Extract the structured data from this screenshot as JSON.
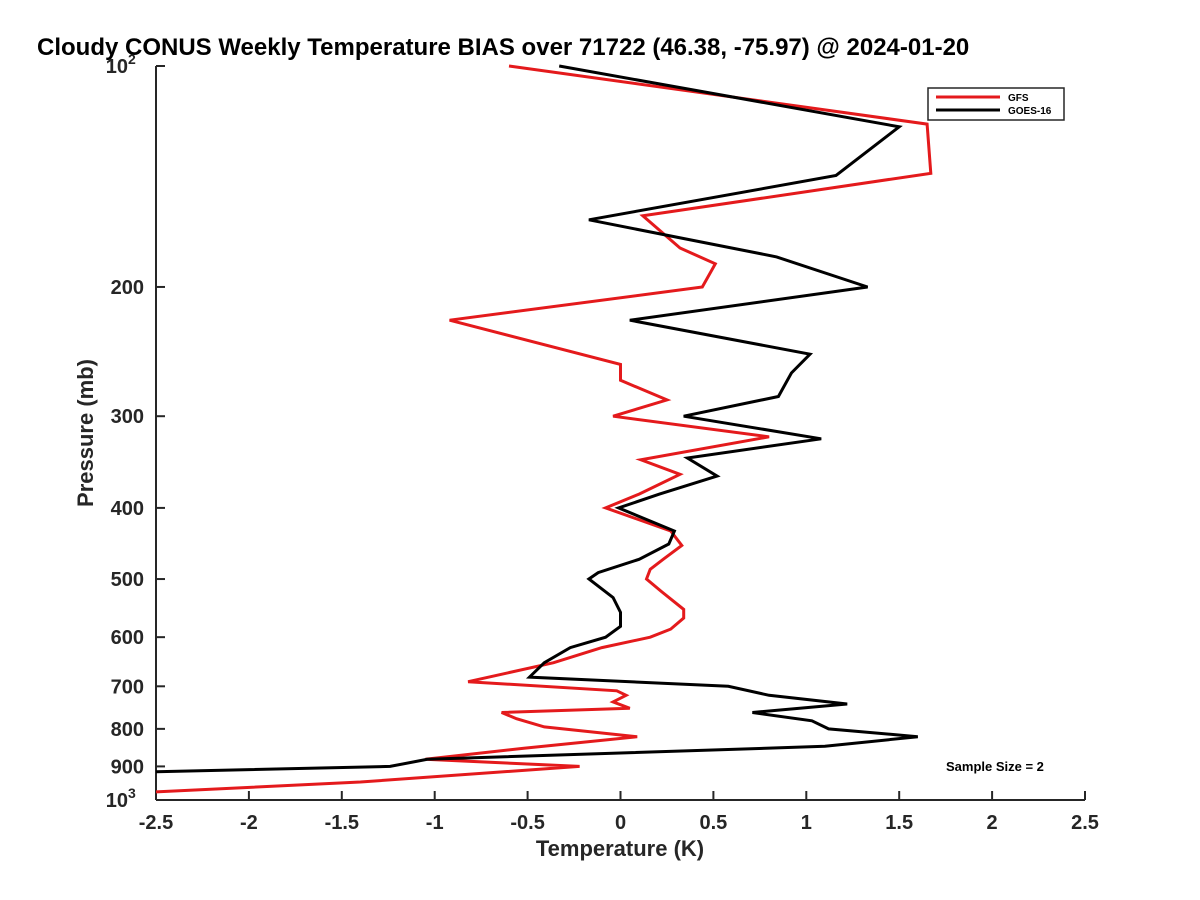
{
  "chart_data": {
    "type": "line",
    "title": "Cloudy CONUS Weekly Temperature BIAS over 71722 (46.38, -75.97) @ 2024-01-20",
    "xlabel": "Temperature (K)",
    "ylabel": "Pressure (mb)",
    "xlim": [
      -2.5,
      2.5
    ],
    "ylim": [
      100,
      1000
    ],
    "yscale": "log",
    "yreverse": true,
    "grid": false,
    "legend_position": "top-right",
    "annotation": "Sample Size = 2",
    "x_ticks": [
      {
        "value": -2.5,
        "label": "-2.5"
      },
      {
        "value": -2,
        "label": "-2"
      },
      {
        "value": -1.5,
        "label": "-1.5"
      },
      {
        "value": -1,
        "label": "-1"
      },
      {
        "value": -0.5,
        "label": "-0.5"
      },
      {
        "value": 0,
        "label": "0"
      },
      {
        "value": 0.5,
        "label": "0.5"
      },
      {
        "value": 1,
        "label": "1"
      },
      {
        "value": 1.5,
        "label": "1.5"
      },
      {
        "value": 2,
        "label": "2"
      },
      {
        "value": 2.5,
        "label": "2.5"
      }
    ],
    "y_ticks": [
      {
        "value": 100,
        "label": "10",
        "sup": "2"
      },
      {
        "value": 200,
        "label": "200"
      },
      {
        "value": 300,
        "label": "300"
      },
      {
        "value": 400,
        "label": "400"
      },
      {
        "value": 500,
        "label": "500"
      },
      {
        "value": 600,
        "label": "600"
      },
      {
        "value": 700,
        "label": "700"
      },
      {
        "value": 800,
        "label": "800"
      },
      {
        "value": 900,
        "label": "900"
      },
      {
        "value": 1000,
        "label": "10",
        "sup": "3"
      }
    ],
    "series": [
      {
        "name": "GFS",
        "color": "#e41a1c",
        "points": [
          {
            "x": -0.6,
            "p": 100
          },
          {
            "x": 1.65,
            "p": 120
          },
          {
            "x": 1.67,
            "p": 140
          },
          {
            "x": 0.12,
            "p": 160
          },
          {
            "x": 0.32,
            "p": 177
          },
          {
            "x": 0.51,
            "p": 186
          },
          {
            "x": 0.44,
            "p": 200
          },
          {
            "x": -0.92,
            "p": 222
          },
          {
            "x": 0.0,
            "p": 255
          },
          {
            "x": 0.0,
            "p": 268
          },
          {
            "x": 0.25,
            "p": 285
          },
          {
            "x": -0.04,
            "p": 300
          },
          {
            "x": 0.8,
            "p": 320
          },
          {
            "x": 0.11,
            "p": 344
          },
          {
            "x": 0.32,
            "p": 360
          },
          {
            "x": 0.1,
            "p": 383
          },
          {
            "x": -0.08,
            "p": 400
          },
          {
            "x": 0.27,
            "p": 430
          },
          {
            "x": 0.33,
            "p": 450
          },
          {
            "x": 0.23,
            "p": 470
          },
          {
            "x": 0.16,
            "p": 485
          },
          {
            "x": 0.14,
            "p": 500
          },
          {
            "x": 0.22,
            "p": 520
          },
          {
            "x": 0.34,
            "p": 550
          },
          {
            "x": 0.34,
            "p": 565
          },
          {
            "x": 0.27,
            "p": 585
          },
          {
            "x": 0.16,
            "p": 600
          },
          {
            "x": -0.1,
            "p": 620
          },
          {
            "x": -0.36,
            "p": 650
          },
          {
            "x": -0.82,
            "p": 690
          },
          {
            "x": -0.02,
            "p": 710
          },
          {
            "x": 0.03,
            "p": 720
          },
          {
            "x": -0.04,
            "p": 735
          },
          {
            "x": 0.05,
            "p": 750
          },
          {
            "x": -0.64,
            "p": 760
          },
          {
            "x": -0.56,
            "p": 775
          },
          {
            "x": -0.41,
            "p": 795
          },
          {
            "x": 0.09,
            "p": 820
          },
          {
            "x": -0.52,
            "p": 850
          },
          {
            "x": -1.05,
            "p": 880
          },
          {
            "x": -0.22,
            "p": 900
          },
          {
            "x": -1.4,
            "p": 945
          },
          {
            "x": -2.5,
            "p": 975
          }
        ]
      },
      {
        "name": "GOES-16",
        "color": "#000000",
        "points": [
          {
            "x": -0.33,
            "p": 100
          },
          {
            "x": 1.5,
            "p": 121
          },
          {
            "x": 1.16,
            "p": 141
          },
          {
            "x": -0.17,
            "p": 162
          },
          {
            "x": 0.84,
            "p": 182
          },
          {
            "x": 1.33,
            "p": 200
          },
          {
            "x": 0.05,
            "p": 222
          },
          {
            "x": 1.02,
            "p": 247
          },
          {
            "x": 0.92,
            "p": 262
          },
          {
            "x": 0.85,
            "p": 282
          },
          {
            "x": 0.34,
            "p": 300
          },
          {
            "x": 1.08,
            "p": 322
          },
          {
            "x": 0.36,
            "p": 342
          },
          {
            "x": 0.52,
            "p": 362
          },
          {
            "x": 0.21,
            "p": 383
          },
          {
            "x": -0.01,
            "p": 400
          },
          {
            "x": 0.29,
            "p": 430
          },
          {
            "x": 0.26,
            "p": 448
          },
          {
            "x": 0.1,
            "p": 470
          },
          {
            "x": -0.12,
            "p": 490
          },
          {
            "x": -0.17,
            "p": 500
          },
          {
            "x": -0.04,
            "p": 530
          },
          {
            "x": 0.0,
            "p": 555
          },
          {
            "x": 0.0,
            "p": 580
          },
          {
            "x": -0.08,
            "p": 600
          },
          {
            "x": -0.27,
            "p": 620
          },
          {
            "x": -0.41,
            "p": 650
          },
          {
            "x": -0.49,
            "p": 680
          },
          {
            "x": 0.58,
            "p": 700
          },
          {
            "x": 0.8,
            "p": 720
          },
          {
            "x": 1.22,
            "p": 740
          },
          {
            "x": 0.71,
            "p": 760
          },
          {
            "x": 1.03,
            "p": 780
          },
          {
            "x": 1.12,
            "p": 800
          },
          {
            "x": 1.6,
            "p": 820
          },
          {
            "x": 1.1,
            "p": 845
          },
          {
            "x": -1.04,
            "p": 880
          },
          {
            "x": -1.24,
            "p": 900
          },
          {
            "x": -2.5,
            "p": 915
          }
        ]
      }
    ]
  }
}
